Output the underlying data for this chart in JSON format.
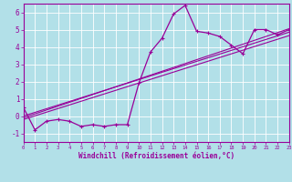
{
  "title": "",
  "xlabel": "Windchill (Refroidissement éolien,°C)",
  "ylabel": "",
  "bg_color": "#b2e0e8",
  "grid_color": "#ffffff",
  "line_color": "#990099",
  "xlim": [
    0,
    23
  ],
  "ylim": [
    -1.5,
    6.5
  ],
  "xticks": [
    0,
    1,
    2,
    3,
    4,
    5,
    6,
    7,
    8,
    9,
    10,
    11,
    12,
    13,
    14,
    15,
    16,
    17,
    18,
    19,
    20,
    21,
    22,
    23
  ],
  "yticks": [
    -1,
    0,
    1,
    2,
    3,
    4,
    5,
    6
  ],
  "main_x": [
    0,
    1,
    2,
    3,
    4,
    5,
    6,
    7,
    8,
    9,
    10,
    11,
    12,
    13,
    14,
    15,
    16,
    17,
    18,
    19,
    20,
    21,
    22,
    23
  ],
  "main_y": [
    0.5,
    -0.8,
    -0.3,
    -0.2,
    -0.3,
    -0.6,
    -0.5,
    -0.6,
    -0.5,
    -0.5,
    1.9,
    3.7,
    4.5,
    5.9,
    6.4,
    4.9,
    4.8,
    4.6,
    4.1,
    3.6,
    5.0,
    5.0,
    4.7,
    5.0
  ],
  "line2_x": [
    0,
    23
  ],
  "line2_y": [
    -0.1,
    5.05
  ],
  "line3_x": [
    0,
    23
  ],
  "line3_y": [
    0.0,
    4.85
  ],
  "line4_x": [
    0,
    23
  ],
  "line4_y": [
    -0.2,
    4.65
  ]
}
